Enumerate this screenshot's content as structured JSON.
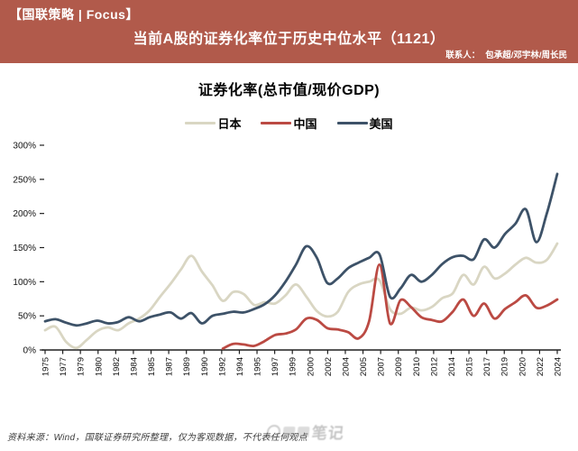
{
  "header": {
    "brand": "【国联策略 | Focus】",
    "title": "当前A股的证券化率位于历史中位水平（1121）",
    "contact_label": "联系人：",
    "contact_names": "包承超/邓宇林/周长民",
    "bg_color": "#b15a4b"
  },
  "chart_data": {
    "type": "line",
    "title": "证券化率(总市值/现价GDP)",
    "grid": false,
    "legend_position": "top",
    "ylim": [
      0,
      300
    ],
    "y_tick_labels": [
      "0%",
      "50%",
      "100%",
      "150%",
      "200%",
      "250%",
      "300%"
    ],
    "x_start": 1975,
    "x_end": 2024,
    "x_tick_labels": [
      "1975",
      "1977",
      "1979",
      "1980",
      "1982",
      "1984",
      "1985",
      "1987",
      "1989",
      "1990",
      "1992",
      "1994",
      "1995",
      "1997",
      "1999",
      "2000",
      "2002",
      "2004",
      "2005",
      "2007",
      "2009",
      "2010",
      "2012",
      "2014",
      "2015",
      "2017",
      "2019",
      "2020",
      "2022",
      "2024"
    ],
    "axis_color": "#1f1f1f",
    "series": [
      {
        "name": "日本",
        "color": "#d9d6c3",
        "start_year": 1975,
        "values": [
          29,
          34,
          12,
          3,
          15,
          28,
          33,
          29,
          39,
          46,
          58,
          78,
          97,
          118,
          138,
          115,
          95,
          72,
          85,
          82,
          66,
          70,
          68,
          80,
          96,
          78,
          57,
          49,
          56,
          85,
          96,
          100,
          102,
          60,
          53,
          62,
          58,
          63,
          76,
          83,
          110,
          96,
          122,
          105,
          112,
          125,
          135,
          128,
          132,
          156
        ]
      },
      {
        "name": "中国",
        "color": "#bb4a43",
        "start_year": 1992,
        "values": [
          2,
          9,
          8,
          6,
          13,
          22,
          24,
          30,
          46,
          44,
          32,
          30,
          26,
          17,
          42,
          125,
          39,
          73,
          63,
          48,
          44,
          42,
          56,
          74,
          50,
          68,
          46,
          60,
          70,
          80,
          62,
          65,
          74
        ]
      },
      {
        "name": "美国",
        "color": "#3d5268",
        "start_year": 1975,
        "values": [
          42,
          45,
          40,
          36,
          39,
          43,
          39,
          41,
          48,
          42,
          48,
          52,
          55,
          46,
          54,
          39,
          50,
          53,
          56,
          55,
          60,
          67,
          80,
          100,
          125,
          152,
          135,
          98,
          105,
          120,
          128,
          135,
          140,
          78,
          90,
          110,
          100,
          110,
          126,
          136,
          138,
          133,
          162,
          150,
          170,
          185,
          206,
          158,
          200,
          258
        ]
      }
    ]
  },
  "footer": {
    "source_text": "资料来源：Wind，国联证券研究所整理，仅为客观数据，不代表任何观点",
    "watermark": "笔记"
  }
}
